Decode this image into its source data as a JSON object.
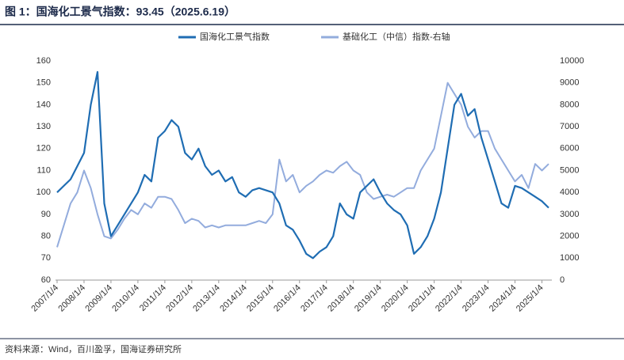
{
  "chart_data": {
    "type": "line",
    "title": "图 1：国海化工景气指数：93.45（2025.6.19）",
    "source": "资料来源：Wind，百川盈孚，国海证券研究所",
    "categories": [
      "2007/1/4",
      null,
      null,
      null,
      "2008/1/4",
      null,
      null,
      null,
      "2009/1/4",
      null,
      null,
      null,
      "2010/1/4",
      null,
      null,
      null,
      "2011/1/4",
      null,
      null,
      null,
      "2012/1/4",
      null,
      null,
      null,
      "2013/1/4",
      null,
      null,
      null,
      "2014/1/4",
      null,
      null,
      null,
      "2015/1/4",
      null,
      null,
      null,
      "2016/1/4",
      null,
      null,
      null,
      "2017/1/4",
      null,
      null,
      null,
      "2018/1/4",
      null,
      null,
      null,
      "2019/1/4",
      null,
      null,
      null,
      "2020/1/4",
      null,
      null,
      null,
      "2021/1/4",
      null,
      null,
      null,
      "2022/1/4",
      null,
      null,
      null,
      "2023/1/4",
      null,
      null,
      null,
      "2024/1/4",
      null,
      null,
      null,
      "2025/1/4",
      null
    ],
    "series": [
      {
        "name": "国海化工景气指数",
        "color": "#1f6db3",
        "values": [
          100,
          103,
          106,
          112,
          118,
          140,
          155,
          95,
          80,
          85,
          90,
          95,
          100,
          108,
          105,
          125,
          128,
          133,
          130,
          118,
          115,
          120,
          112,
          108,
          110,
          105,
          107,
          100,
          98,
          101,
          102,
          101,
          100,
          95,
          85,
          83,
          78,
          72,
          70,
          73,
          75,
          80,
          95,
          90,
          88,
          100,
          103,
          106,
          100,
          95,
          92,
          90,
          85,
          72,
          75,
          80,
          88,
          100,
          120,
          140,
          145,
          135,
          138,
          125,
          115,
          105,
          95,
          93,
          103,
          102,
          100,
          98,
          96,
          93
        ]
      },
      {
        "name": "基础化工（中信）指数-右轴",
        "color": "#93acdd",
        "axis": "y2",
        "values": [
          1500,
          2500,
          3500,
          4000,
          5000,
          4200,
          3000,
          2000,
          1900,
          2300,
          2800,
          3200,
          3000,
          3500,
          3300,
          3800,
          3800,
          3700,
          3200,
          2600,
          2800,
          2700,
          2400,
          2500,
          2400,
          2500,
          2500,
          2500,
          2500,
          2600,
          2700,
          2600,
          3000,
          5500,
          4500,
          4800,
          4000,
          4300,
          4500,
          4800,
          5000,
          4900,
          5200,
          5400,
          5000,
          4800,
          4000,
          3700,
          3800,
          3900,
          3800,
          4000,
          4200,
          4200,
          5000,
          5500,
          6000,
          7500,
          9000,
          8500,
          8000,
          7000,
          6500,
          6800,
          6800,
          6000,
          5500,
          5000,
          4500,
          4800,
          4200,
          5300,
          5000,
          5300
        ]
      }
    ],
    "ylim": [
      60,
      160
    ],
    "yticks": [
      60,
      70,
      80,
      90,
      100,
      110,
      120,
      130,
      140,
      150,
      160
    ],
    "y2lim": [
      0,
      10000
    ],
    "y2ticks": [
      0,
      1000,
      2000,
      3000,
      4000,
      5000,
      6000,
      7000,
      8000,
      9000,
      10000
    ]
  }
}
